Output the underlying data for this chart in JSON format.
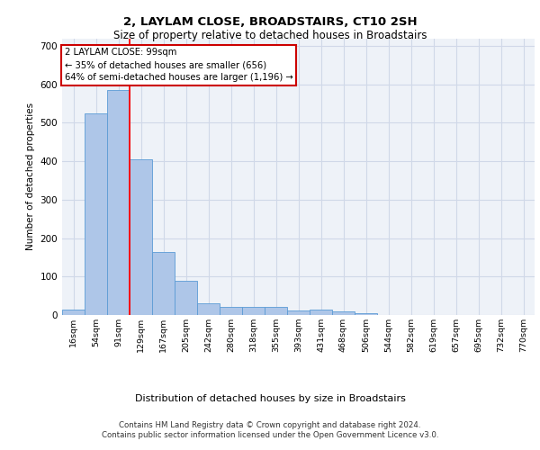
{
  "title1": "2, LAYLAM CLOSE, BROADSTAIRS, CT10 2SH",
  "title2": "Size of property relative to detached houses in Broadstairs",
  "xlabel": "Distribution of detached houses by size in Broadstairs",
  "ylabel": "Number of detached properties",
  "bin_labels": [
    "16sqm",
    "54sqm",
    "91sqm",
    "129sqm",
    "167sqm",
    "205sqm",
    "242sqm",
    "280sqm",
    "318sqm",
    "355sqm",
    "393sqm",
    "431sqm",
    "468sqm",
    "506sqm",
    "544sqm",
    "582sqm",
    "619sqm",
    "657sqm",
    "695sqm",
    "732sqm",
    "770sqm"
  ],
  "bar_values": [
    15,
    525,
    585,
    405,
    165,
    88,
    30,
    20,
    20,
    20,
    12,
    13,
    10,
    5,
    0,
    0,
    0,
    0,
    0,
    0,
    0
  ],
  "bar_color": "#aec6e8",
  "bar_edge_color": "#5b9bd5",
  "grid_color": "#d0d8e8",
  "background_color": "#eef2f8",
  "annotation_box_text1": "2 LAYLAM CLOSE: 99sqm",
  "annotation_box_text2": "← 35% of detached houses are smaller (656)",
  "annotation_box_text3": "64% of semi-detached houses are larger (1,196) →",
  "red_line_x": 2.5,
  "annotation_box_color": "#ffffff",
  "annotation_box_edge_color": "#cc0000",
  "footer1": "Contains HM Land Registry data © Crown copyright and database right 2024.",
  "footer2": "Contains public sector information licensed under the Open Government Licence v3.0.",
  "ylim": [
    0,
    720
  ],
  "yticks": [
    0,
    100,
    200,
    300,
    400,
    500,
    600,
    700
  ]
}
